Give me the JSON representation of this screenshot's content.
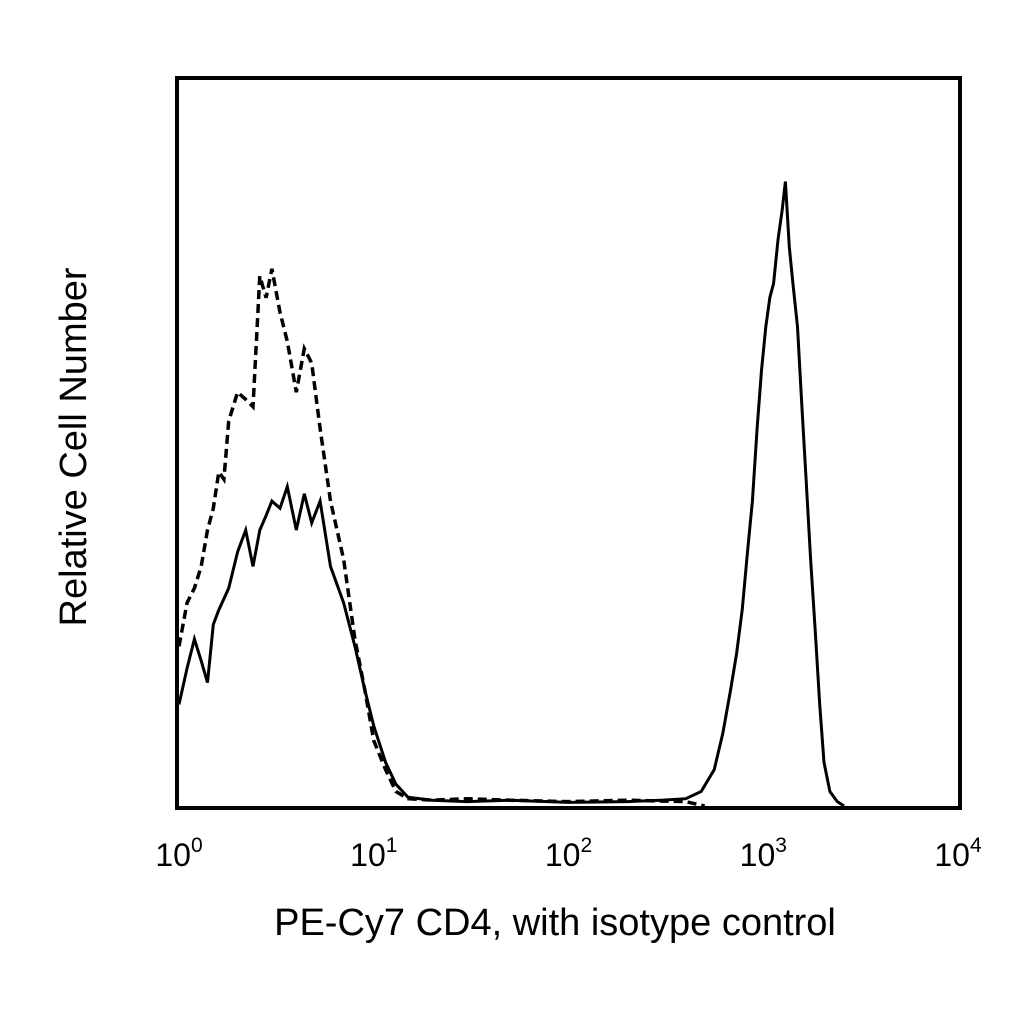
{
  "chart_data": {
    "type": "line",
    "title": "",
    "xlabel": "PE-Cy7 CD4, with isotype control",
    "ylabel": "Relative Cell Number",
    "x_scale": "log",
    "xlim": [
      1,
      10000
    ],
    "ylim": [
      0,
      100
    ],
    "grid": false,
    "x_ticks": [
      {
        "base": "10",
        "exp": "0",
        "value": 1
      },
      {
        "base": "10",
        "exp": "1",
        "value": 10
      },
      {
        "base": "10",
        "exp": "2",
        "value": 100
      },
      {
        "base": "10",
        "exp": "3",
        "value": 1000
      },
      {
        "base": "10",
        "exp": "4",
        "value": 10000
      }
    ],
    "series": [
      {
        "style": "dashed",
        "x": [
          1.0,
          1.1,
          1.2,
          1.3,
          1.4,
          1.5,
          1.6,
          1.7,
          1.8,
          2.0,
          2.2,
          2.4,
          2.6,
          2.8,
          3.0,
          3.3,
          3.6,
          4.0,
          4.4,
          4.8,
          5.3,
          6.0,
          7.0,
          8.0,
          9.0,
          10.0,
          11.5,
          13.0,
          15.0,
          20.0,
          30.0,
          50.0,
          100.0,
          200.0,
          400.0,
          500.0
        ],
        "y": [
          22,
          28,
          30,
          33,
          38,
          41,
          46,
          45,
          53,
          57,
          56,
          55,
          73,
          70,
          74,
          68,
          64,
          57,
          63,
          61,
          52,
          42,
          34,
          23,
          16,
          9,
          5,
          2,
          1,
          0.8,
          1,
          0.8,
          0.6,
          0.8,
          0.6,
          0
        ]
      },
      {
        "style": "solid",
        "x": [
          1.0,
          1.1,
          1.2,
          1.3,
          1.4,
          1.5,
          1.6,
          1.8,
          2.0,
          2.2,
          2.4,
          2.6,
          2.8,
          3.0,
          3.3,
          3.6,
          4.0,
          4.4,
          4.8,
          5.3,
          6.0,
          7.0,
          8.0,
          9.0,
          10.0,
          11.5,
          13.0,
          15.0,
          20.0,
          30.0,
          50.0,
          100.0,
          200.0,
          300.0,
          400.0,
          480.0,
          560.0,
          620.0,
          680.0,
          730.0,
          780.0,
          830.0,
          880.0,
          930.0,
          980.0,
          1030.0,
          1080.0,
          1130.0,
          1190.0,
          1250.0,
          1300.0,
          1360.0,
          1420.0,
          1500.0,
          1580.0,
          1660.0,
          1750.0,
          1850.0,
          1950.0,
          2050.0,
          2200.0,
          2400.0,
          2600.0
        ],
        "y": [
          14,
          19,
          23,
          20,
          17,
          25,
          27,
          30,
          35,
          38,
          33,
          38,
          40,
          42,
          41,
          44,
          38,
          43,
          39,
          42,
          33,
          28,
          22,
          16,
          11,
          6,
          3,
          1.2,
          0.8,
          0.6,
          0.8,
          0.5,
          0.6,
          0.8,
          1,
          2,
          5,
          10,
          16,
          21,
          27,
          35,
          42,
          52,
          60,
          66,
          70,
          72,
          78,
          82,
          86,
          77,
          72,
          66,
          55,
          45,
          34,
          24,
          14,
          6,
          2,
          0.6,
          0
        ]
      }
    ]
  }
}
